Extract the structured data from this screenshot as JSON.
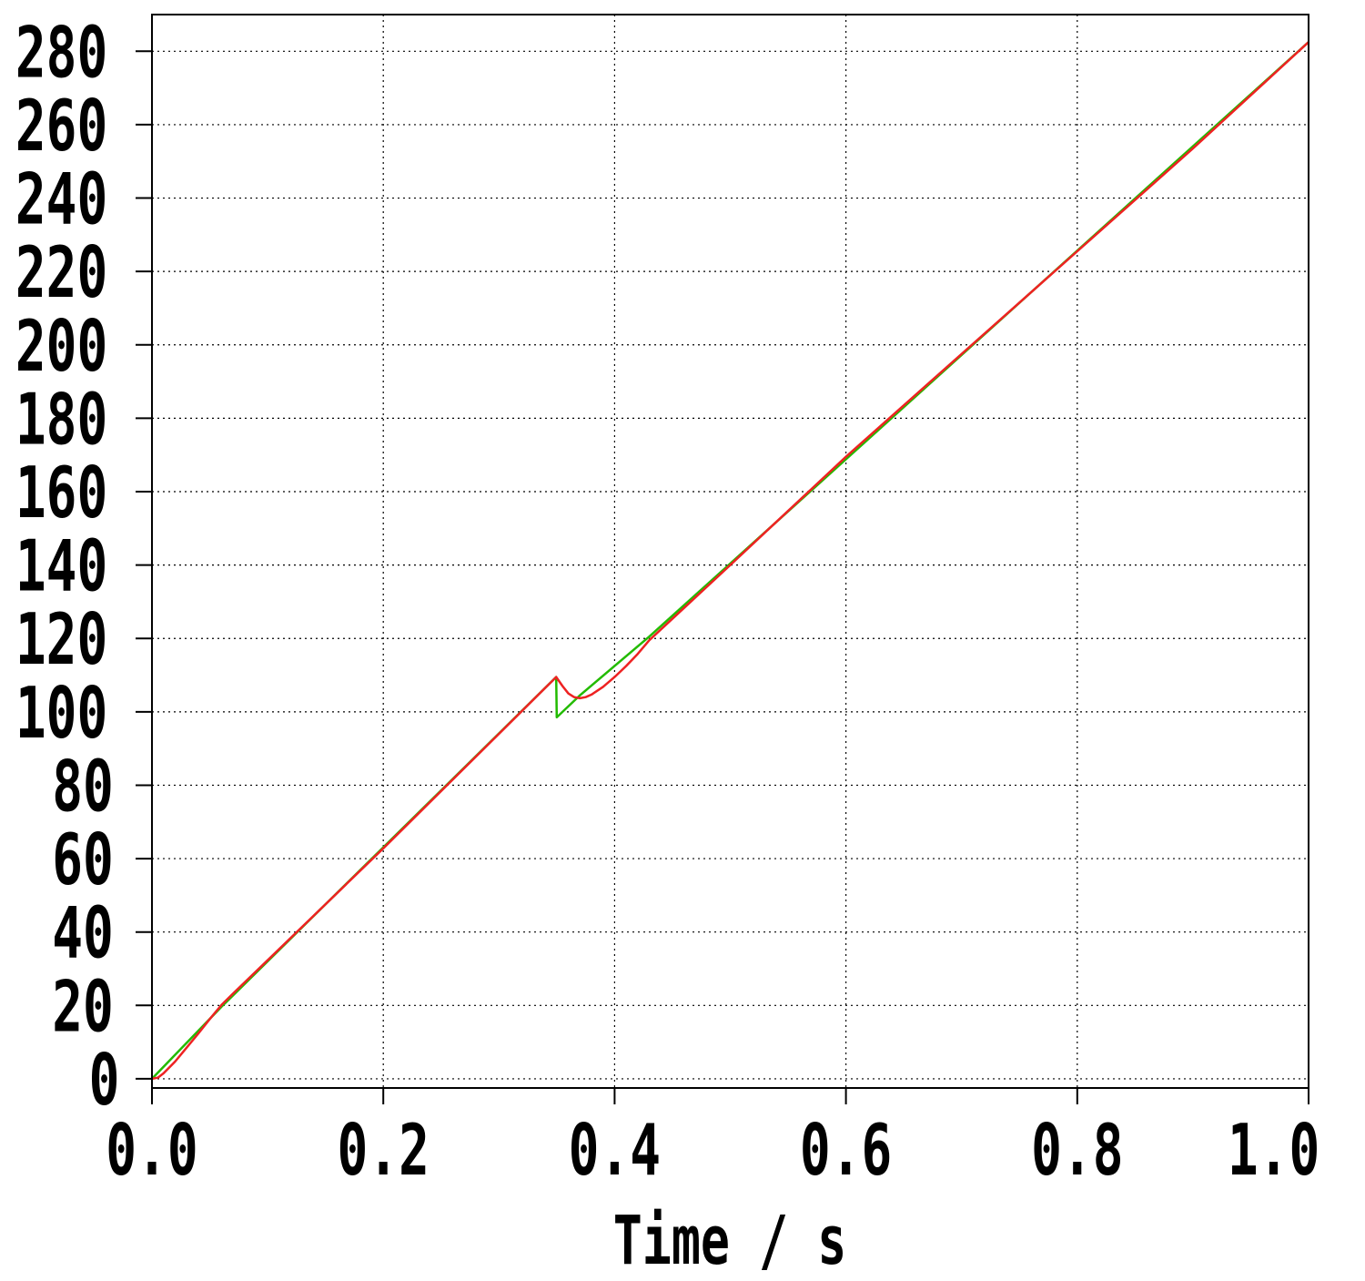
{
  "chart_data": {
    "type": "line",
    "title": "",
    "xlabel": "Time / s",
    "ylabel": "",
    "xlim": [
      0.0,
      1.0
    ],
    "ylim": [
      -2.5,
      290
    ],
    "x_ticks": [
      "0.0",
      "0.2",
      "0.4",
      "0.6",
      "0.8",
      "1.0"
    ],
    "y_ticks": [
      "0",
      "20",
      "40",
      "60",
      "80",
      "100",
      "120",
      "140",
      "160",
      "180",
      "200",
      "220",
      "240",
      "260",
      "280"
    ],
    "grid": true,
    "series": [
      {
        "color": "#22bb00",
        "x": [
          0.0,
          0.06,
          0.3495,
          0.35,
          0.37,
          0.43,
          1.0
        ],
        "y": [
          0,
          19.6,
          109.5,
          98.5,
          104.5,
          120.5,
          282.5
        ]
      },
      {
        "color": "#ee2222",
        "x": [
          0.0,
          0.005,
          0.01,
          0.02,
          0.03,
          0.04,
          0.05,
          0.06,
          0.07,
          0.1,
          0.2,
          0.3,
          0.3495,
          0.355,
          0.36,
          0.365,
          0.37,
          0.375,
          0.38,
          0.39,
          0.4,
          0.41,
          0.42,
          0.43,
          0.5,
          0.6,
          0.7,
          0.8,
          0.9,
          1.0
        ],
        "y": [
          0,
          0.3,
          1.5,
          4.7,
          8.5,
          12.3,
          16.3,
          20.1,
          23.2,
          32.3,
          62.8,
          94.0,
          109.5,
          107.0,
          105.0,
          104.0,
          103.7,
          104.0,
          104.7,
          106.8,
          109.5,
          112.5,
          115.8,
          119.5,
          140.0,
          169.5,
          197.5,
          225.5,
          253.5,
          282.5
        ]
      }
    ]
  }
}
